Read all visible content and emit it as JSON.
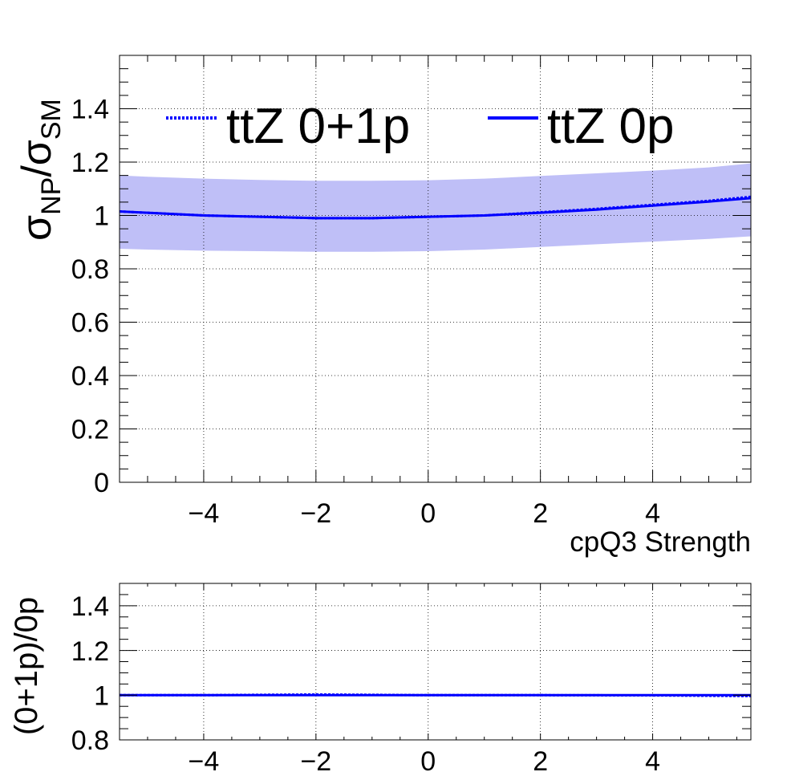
{
  "chart_data": [
    {
      "type": "line",
      "panel": "main",
      "xlabel": "cpQ3 Strength",
      "ylabel_main": "σ",
      "ylabel_sub1": "NP",
      "ylabel_div": "/σ",
      "ylabel_sub2": "SM",
      "xlim": [
        -5.5,
        5.75
      ],
      "ylim": [
        0,
        1.6
      ],
      "x_ticks": [
        -4,
        -2,
        0,
        2,
        4
      ],
      "x_tick_labels": [
        "−4",
        "−2",
        "0",
        "2",
        "4"
      ],
      "y_ticks": [
        0,
        0.2,
        0.4,
        0.6,
        0.8,
        1.0,
        1.2,
        1.4
      ],
      "y_tick_labels": [
        "0",
        "0.2",
        "0.4",
        "0.6",
        "0.8",
        "1",
        "1.2",
        "1.4"
      ],
      "grid": true,
      "legend_placement": "top",
      "x": [
        -5.5,
        -5,
        -4,
        -3,
        -2,
        -1,
        0,
        1,
        2,
        3,
        4,
        5,
        5.75
      ],
      "series": [
        {
          "name": "ttZ 0+1p",
          "style": "dotted",
          "color": "#0000ff",
          "values": [
            1.015,
            1.01,
            1.0,
            0.995,
            0.99,
            0.99,
            0.995,
            1.0,
            1.012,
            1.025,
            1.04,
            1.055,
            1.07
          ],
          "band_low": [
            0.875,
            0.872,
            0.868,
            0.866,
            0.864,
            0.864,
            0.866,
            0.872,
            0.882,
            0.892,
            0.902,
            0.912,
            0.922
          ],
          "band_high": [
            1.15,
            1.145,
            1.138,
            1.133,
            1.13,
            1.13,
            1.132,
            1.138,
            1.148,
            1.158,
            1.168,
            1.18,
            1.195
          ]
        },
        {
          "name": "ttZ 0p",
          "style": "solid",
          "color": "#0000ff",
          "values": [
            1.015,
            1.01,
            1.0,
            0.995,
            0.99,
            0.99,
            0.995,
            1.0,
            1.01,
            1.022,
            1.037,
            1.052,
            1.065
          ]
        }
      ]
    },
    {
      "type": "line",
      "panel": "ratio",
      "ylabel": "(0+1p)/0p",
      "xlim": [
        -5.5,
        5.75
      ],
      "ylim": [
        0.8,
        1.5
      ],
      "x_ticks": [
        -4,
        -2,
        0,
        2,
        4
      ],
      "x_tick_labels": [
        "−4",
        "−2",
        "0",
        "2",
        "4"
      ],
      "y_ticks": [
        0.8,
        1.0,
        1.2,
        1.4
      ],
      "y_tick_labels": [
        "0.8",
        "1",
        "1.2",
        "1.4"
      ],
      "grid": true,
      "x": [
        -5.5,
        -4,
        -2,
        0,
        2,
        4,
        5.75
      ],
      "series": [
        {
          "style": "solid",
          "color": "#0000ff",
          "values": [
            1.0,
            1.0,
            1.0,
            1.0,
            1.0,
            1.0,
            1.0
          ]
        },
        {
          "style": "dotted",
          "color": "#0000ff",
          "values": [
            1.0,
            1.0,
            1.003,
            1.0,
            1.0,
            0.999,
            0.996
          ]
        }
      ]
    }
  ]
}
